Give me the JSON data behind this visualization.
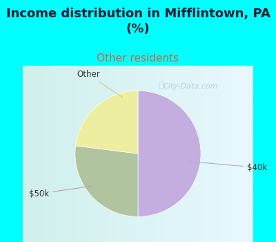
{
  "title": "Income distribution in Mifflintown, PA\n(%)",
  "subtitle": "Other residents",
  "title_color": "#1a1a2e",
  "subtitle_color": "#cc6644",
  "background_color": "#00ffff",
  "chart_bg_left": "#b8e8d8",
  "chart_bg_right": "#e8f8ff",
  "slices": [
    {
      "label": "$40k",
      "value": 50,
      "color": "#c4aee0"
    },
    {
      "label": "$50k",
      "value": 27,
      "color": "#b0c4a0"
    },
    {
      "label": "Other",
      "value": 23,
      "color": "#eeeea0"
    }
  ],
  "startangle": 90,
  "watermark": "City-Data.com",
  "figsize": [
    4.0,
    3.5
  ],
  "dpi": 100,
  "title_fontsize": 13,
  "subtitle_fontsize": 11
}
